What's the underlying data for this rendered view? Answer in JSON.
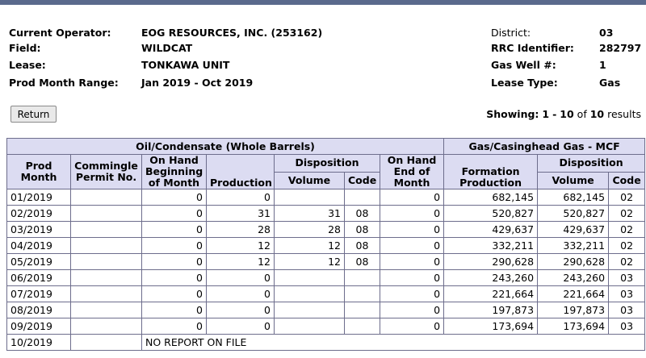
{
  "lease_info": {
    "current_operator_label": "Current Operator:",
    "current_operator": "EOG RESOURCES, INC. (253162)",
    "field_label": "Field:",
    "field": "WILDCAT",
    "lease_label": "Lease:",
    "lease": "TONKAWA UNIT",
    "prod_month_range_label": "Prod Month Range:",
    "prod_month_range": "Jan 2019 - Oct 2019",
    "district_label": "District:",
    "district": "03",
    "rrc_identifier_label": "RRC Identifier:",
    "rrc_identifier": "282797",
    "gas_well_label": "Gas Well #:",
    "gas_well": "1",
    "lease_type_label": "Lease Type:",
    "lease_type": "Gas"
  },
  "controls": {
    "return_label": "Return"
  },
  "showing": {
    "prefix": "Showing:",
    "from": "1",
    "dash": "-",
    "to": "10",
    "of": "of",
    "total": "10",
    "suffix": "results"
  },
  "table": {
    "group_oil": "Oil/Condensate (Whole Barrels)",
    "group_gas": "Gas/Casinghead Gas - MCF",
    "col_prod_month": "Prod Month",
    "col_commingle": "Commingle Permit No.",
    "col_on_hand_begin": "On Hand Beginning of Month",
    "col_production": "Production",
    "col_disposition": "Disposition",
    "col_on_hand_end": "On Hand End of Month",
    "col_formation_production": "Formation Production",
    "col_gas_disposition": "Disposition",
    "col_volume": "Volume",
    "col_code": "Code",
    "col_gas_volume": "Volume",
    "col_gas_code": "Code",
    "rows": [
      {
        "month": "01/2019",
        "commingle": "",
        "on_hand_begin": "0",
        "production": "0",
        "volume": "",
        "code": "",
        "on_hand_end": "0",
        "formation": "682,145",
        "gas_volume": "682,145",
        "gas_code": "02"
      },
      {
        "month": "02/2019",
        "commingle": "",
        "on_hand_begin": "0",
        "production": "31",
        "volume": "31",
        "code": "08",
        "on_hand_end": "0",
        "formation": "520,827",
        "gas_volume": "520,827",
        "gas_code": "02"
      },
      {
        "month": "03/2019",
        "commingle": "",
        "on_hand_begin": "0",
        "production": "28",
        "volume": "28",
        "code": "08",
        "on_hand_end": "0",
        "formation": "429,637",
        "gas_volume": "429,637",
        "gas_code": "02"
      },
      {
        "month": "04/2019",
        "commingle": "",
        "on_hand_begin": "0",
        "production": "12",
        "volume": "12",
        "code": "08",
        "on_hand_end": "0",
        "formation": "332,211",
        "gas_volume": "332,211",
        "gas_code": "02"
      },
      {
        "month": "05/2019",
        "commingle": "",
        "on_hand_begin": "0",
        "production": "12",
        "volume": "12",
        "code": "08",
        "on_hand_end": "0",
        "formation": "290,628",
        "gas_volume": "290,628",
        "gas_code": "02"
      },
      {
        "month": "06/2019",
        "commingle": "",
        "on_hand_begin": "0",
        "production": "0",
        "volume": "",
        "code": "",
        "on_hand_end": "0",
        "formation": "243,260",
        "gas_volume": "243,260",
        "gas_code": "03"
      },
      {
        "month": "07/2019",
        "commingle": "",
        "on_hand_begin": "0",
        "production": "0",
        "volume": "",
        "code": "",
        "on_hand_end": "0",
        "formation": "221,664",
        "gas_volume": "221,664",
        "gas_code": "03"
      },
      {
        "month": "08/2019",
        "commingle": "",
        "on_hand_begin": "0",
        "production": "0",
        "volume": "",
        "code": "",
        "on_hand_end": "0",
        "formation": "197,873",
        "gas_volume": "197,873",
        "gas_code": "03"
      },
      {
        "month": "09/2019",
        "commingle": "",
        "on_hand_begin": "0",
        "production": "0",
        "volume": "",
        "code": "",
        "on_hand_end": "0",
        "formation": "173,694",
        "gas_volume": "173,694",
        "gas_code": "03"
      }
    ],
    "no_report_month": "10/2019",
    "no_report_text": "NO REPORT ON FILE"
  }
}
